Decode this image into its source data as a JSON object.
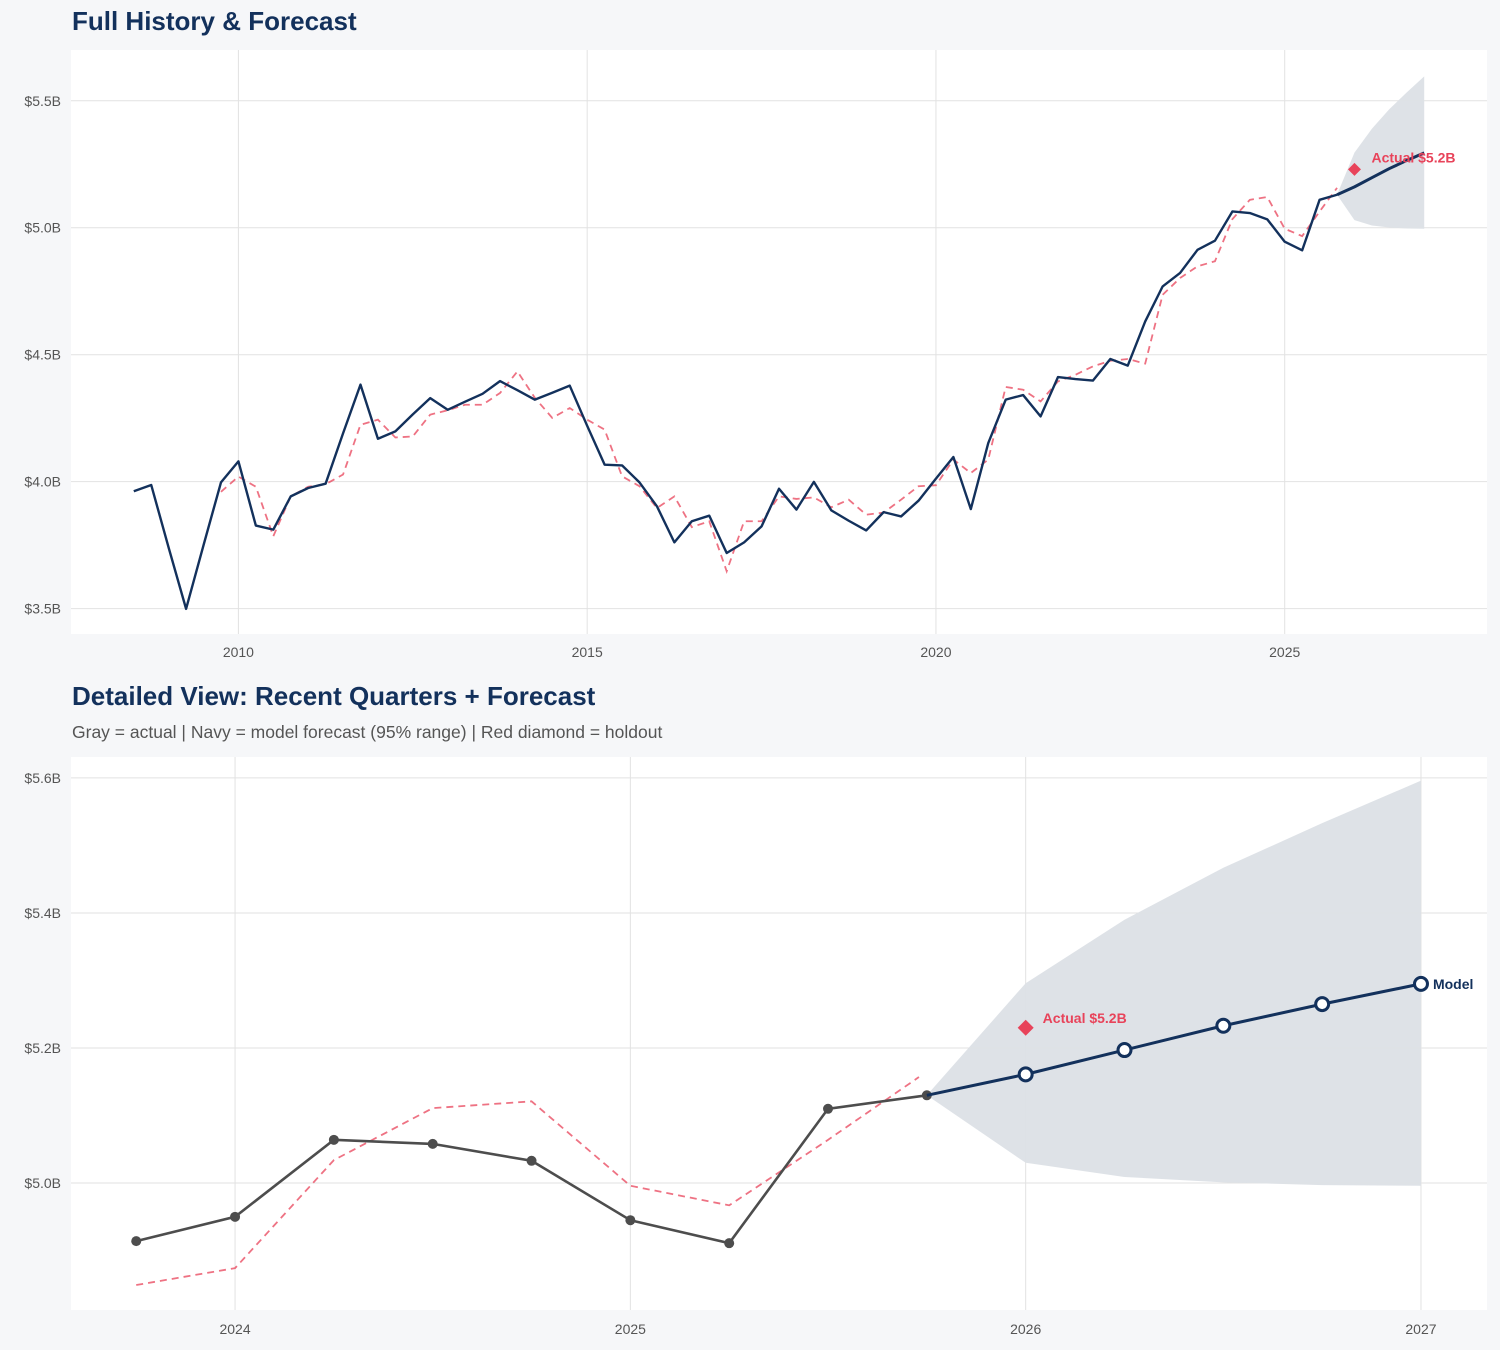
{
  "colors": {
    "navy": "#13315c",
    "red": "#e8435a",
    "gray": "#4d4d4d",
    "band": "#dce0e6",
    "grid": "#e2e2e2"
  },
  "chart_data": [
    {
      "type": "line",
      "title": "Full History & Forecast",
      "xlim": [
        2007.6,
        2027.9
      ],
      "ylim": [
        3.4,
        5.7
      ],
      "x_ticks": [
        2010,
        2015,
        2020,
        2025
      ],
      "x_tick_labels": [
        "2010",
        "2015",
        "2020",
        "2025"
      ],
      "y_ticks": [
        3.5,
        4.0,
        4.5,
        5.0,
        5.5
      ],
      "y_tick_labels": [
        "$3.5B",
        "$4.0B",
        "$4.5B",
        "$5.0B",
        "$5.5B"
      ],
      "grid": true,
      "series": [
        {
          "role": "actual",
          "style": "navy-solid",
          "points": [
            [
              2008.5,
              3.962
            ],
            [
              2008.75,
              3.987
            ],
            [
              2009.0,
              3.74
            ],
            [
              2009.25,
              3.499
            ],
            [
              2009.5,
              3.75
            ],
            [
              2009.75,
              3.997
            ],
            [
              2010.0,
              4.08
            ],
            [
              2010.25,
              3.827
            ],
            [
              2010.5,
              3.811
            ],
            [
              2010.75,
              3.942
            ],
            [
              2011.0,
              3.975
            ],
            [
              2011.25,
              3.992
            ],
            [
              2011.5,
              4.19
            ],
            [
              2011.75,
              4.382
            ],
            [
              2012.0,
              4.169
            ],
            [
              2012.25,
              4.198
            ],
            [
              2012.5,
              4.265
            ],
            [
              2012.75,
              4.329
            ],
            [
              2013.0,
              4.283
            ],
            [
              2013.25,
              4.315
            ],
            [
              2013.5,
              4.346
            ],
            [
              2013.75,
              4.396
            ],
            [
              2014.0,
              4.36
            ],
            [
              2014.25,
              4.323
            ],
            [
              2014.5,
              4.35
            ],
            [
              2014.75,
              4.378
            ],
            [
              2015.0,
              4.22
            ],
            [
              2015.25,
              4.067
            ],
            [
              2015.5,
              4.064
            ],
            [
              2015.75,
              3.997
            ],
            [
              2016.0,
              3.903
            ],
            [
              2016.25,
              3.761
            ],
            [
              2016.5,
              3.844
            ],
            [
              2016.75,
              3.866
            ],
            [
              2017.0,
              3.719
            ],
            [
              2017.25,
              3.761
            ],
            [
              2017.5,
              3.824
            ],
            [
              2017.75,
              3.972
            ],
            [
              2018.0,
              3.89
            ],
            [
              2018.25,
              3.999
            ],
            [
              2018.5,
              3.887
            ],
            [
              2018.75,
              3.846
            ],
            [
              2019.0,
              3.808
            ],
            [
              2019.25,
              3.88
            ],
            [
              2019.5,
              3.863
            ],
            [
              2019.75,
              3.925
            ],
            [
              2020.0,
              4.012
            ],
            [
              2020.25,
              4.097
            ],
            [
              2020.5,
              3.892
            ],
            [
              2020.75,
              4.152
            ],
            [
              2021.0,
              4.323
            ],
            [
              2021.25,
              4.341
            ],
            [
              2021.5,
              4.257
            ],
            [
              2021.75,
              4.412
            ],
            [
              2022.0,
              4.404
            ],
            [
              2022.25,
              4.398
            ],
            [
              2022.5,
              4.483
            ],
            [
              2022.75,
              4.457
            ],
            [
              2023.0,
              4.631
            ],
            [
              2023.25,
              4.769
            ],
            [
              2023.5,
              4.822
            ],
            [
              2023.75,
              4.913
            ],
            [
              2024.0,
              4.949
            ],
            [
              2024.25,
              5.064
            ],
            [
              2024.5,
              5.058
            ],
            [
              2024.75,
              5.033
            ],
            [
              2025.0,
              4.945
            ],
            [
              2025.25,
              4.911
            ],
            [
              2025.5,
              5.11
            ],
            [
              2025.75,
              5.13
            ]
          ]
        },
        {
          "role": "forecast",
          "style": "navy-solid",
          "points": [
            [
              2025.75,
              5.13
            ],
            [
              2026.0,
              5.161
            ],
            [
              2026.25,
              5.197
            ],
            [
              2026.5,
              5.233
            ],
            [
              2026.75,
              5.265
            ],
            [
              2027.0,
              5.295
            ]
          ]
        },
        {
          "role": "fitted",
          "style": "red-dashed",
          "points": [
            [
              2009.75,
              3.96
            ],
            [
              2010.0,
              4.02
            ],
            [
              2010.25,
              3.98
            ],
            [
              2010.5,
              3.785
            ],
            [
              2010.75,
              3.942
            ],
            [
              2011.0,
              3.98
            ],
            [
              2011.25,
              3.99
            ],
            [
              2011.5,
              4.028
            ],
            [
              2011.75,
              4.224
            ],
            [
              2012.0,
              4.244
            ],
            [
              2012.25,
              4.174
            ],
            [
              2012.5,
              4.178
            ],
            [
              2012.75,
              4.264
            ],
            [
              2013.0,
              4.281
            ],
            [
              2013.25,
              4.303
            ],
            [
              2013.5,
              4.303
            ],
            [
              2013.75,
              4.349
            ],
            [
              2014.0,
              4.434
            ],
            [
              2014.25,
              4.33
            ],
            [
              2014.5,
              4.251
            ],
            [
              2014.75,
              4.29
            ],
            [
              2015.0,
              4.244
            ],
            [
              2015.25,
              4.205
            ],
            [
              2015.5,
              4.021
            ],
            [
              2015.75,
              3.982
            ],
            [
              2016.0,
              3.896
            ],
            [
              2016.25,
              3.942
            ],
            [
              2016.5,
              3.821
            ],
            [
              2016.75,
              3.844
            ],
            [
              2017.0,
              3.647
            ],
            [
              2017.25,
              3.844
            ],
            [
              2017.5,
              3.844
            ],
            [
              2017.75,
              3.942
            ],
            [
              2018.0,
              3.932
            ],
            [
              2018.25,
              3.938
            ],
            [
              2018.5,
              3.899
            ],
            [
              2018.75,
              3.929
            ],
            [
              2019.0,
              3.87
            ],
            [
              2019.25,
              3.878
            ],
            [
              2019.5,
              3.929
            ],
            [
              2019.75,
              3.982
            ],
            [
              2020.0,
              3.986
            ],
            [
              2020.25,
              4.087
            ],
            [
              2020.5,
              4.034
            ],
            [
              2020.75,
              4.087
            ],
            [
              2021.0,
              4.373
            ],
            [
              2021.25,
              4.362
            ],
            [
              2021.5,
              4.316
            ],
            [
              2021.75,
              4.395
            ],
            [
              2022.0,
              4.421
            ],
            [
              2022.25,
              4.454
            ],
            [
              2022.5,
              4.476
            ],
            [
              2022.75,
              4.483
            ],
            [
              2023.0,
              4.465
            ],
            [
              2023.25,
              4.736
            ],
            [
              2023.5,
              4.802
            ],
            [
              2023.75,
              4.848
            ],
            [
              2024.0,
              4.868
            ],
            [
              2024.25,
              5.034
            ],
            [
              2024.5,
              5.11
            ],
            [
              2024.75,
              5.121
            ],
            [
              2025.0,
              4.996
            ],
            [
              2025.25,
              4.967
            ],
            [
              2025.5,
              5.064
            ],
            [
              2025.75,
              5.157
            ]
          ]
        }
      ],
      "band": {
        "x": [
          2025.75,
          2026.0,
          2026.25,
          2026.5,
          2026.75,
          2027.0
        ],
        "lower": [
          5.13,
          5.03,
          5.009,
          5.001,
          4.997,
          4.996
        ],
        "upper": [
          5.13,
          5.296,
          5.39,
          5.467,
          5.533,
          5.596
        ]
      },
      "holdout": {
        "x": 2026.0,
        "y": 5.23,
        "label": "Actual $5.2B"
      }
    },
    {
      "type": "line",
      "title": "Detailed View: Recent Quarters + Forecast",
      "subtitle": "Gray = actual  |  Navy = model forecast (95% range)  |  Red diamond = holdout",
      "xlim": [
        2023.585,
        2027.167
      ],
      "ylim": [
        4.812,
        5.631
      ],
      "x_ticks": [
        2024,
        2025,
        2026,
        2027
      ],
      "x_tick_labels": [
        "2024",
        "2025",
        "2026",
        "2027"
      ],
      "y_ticks": [
        5.0,
        5.2,
        5.4,
        5.6
      ],
      "y_tick_labels": [
        "$5.0B",
        "$5.2B",
        "$5.4B",
        "$5.6B"
      ],
      "grid": true,
      "series": [
        {
          "role": "actual",
          "style": "gray-dots",
          "points": [
            [
              2023.75,
              4.914
            ],
            [
              2024.0,
              4.95
            ],
            [
              2024.25,
              5.064
            ],
            [
              2024.5,
              5.058
            ],
            [
              2024.75,
              5.033
            ],
            [
              2025.0,
              4.945
            ],
            [
              2025.25,
              4.911
            ],
            [
              2025.5,
              5.11
            ],
            [
              2025.75,
              5.13
            ]
          ]
        },
        {
          "role": "forecast",
          "style": "navy-open-circles",
          "label": "Model",
          "points": [
            [
              2025.75,
              5.13
            ],
            [
              2026.0,
              5.161
            ],
            [
              2026.25,
              5.197
            ],
            [
              2026.5,
              5.233
            ],
            [
              2026.75,
              5.265
            ],
            [
              2027.0,
              5.295
            ]
          ]
        },
        {
          "role": "fitted",
          "style": "red-dashed",
          "points": [
            [
              2023.75,
              4.849
            ],
            [
              2024.0,
              4.874
            ],
            [
              2024.25,
              5.034
            ],
            [
              2024.5,
              5.111
            ],
            [
              2024.75,
              5.121
            ],
            [
              2025.0,
              4.996
            ],
            [
              2025.25,
              4.967
            ],
            [
              2025.5,
              5.064
            ],
            [
              2025.73,
              5.157
            ]
          ]
        }
      ],
      "band": {
        "x": [
          2025.75,
          2026.0,
          2026.25,
          2026.5,
          2026.75,
          2027.0
        ],
        "lower": [
          5.13,
          5.03,
          5.009,
          5.001,
          4.997,
          4.996
        ],
        "upper": [
          5.13,
          5.296,
          5.39,
          5.467,
          5.533,
          5.596
        ]
      },
      "holdout": {
        "x": 2026.0,
        "y": 5.23,
        "label": "Actual $5.2B"
      }
    }
  ]
}
